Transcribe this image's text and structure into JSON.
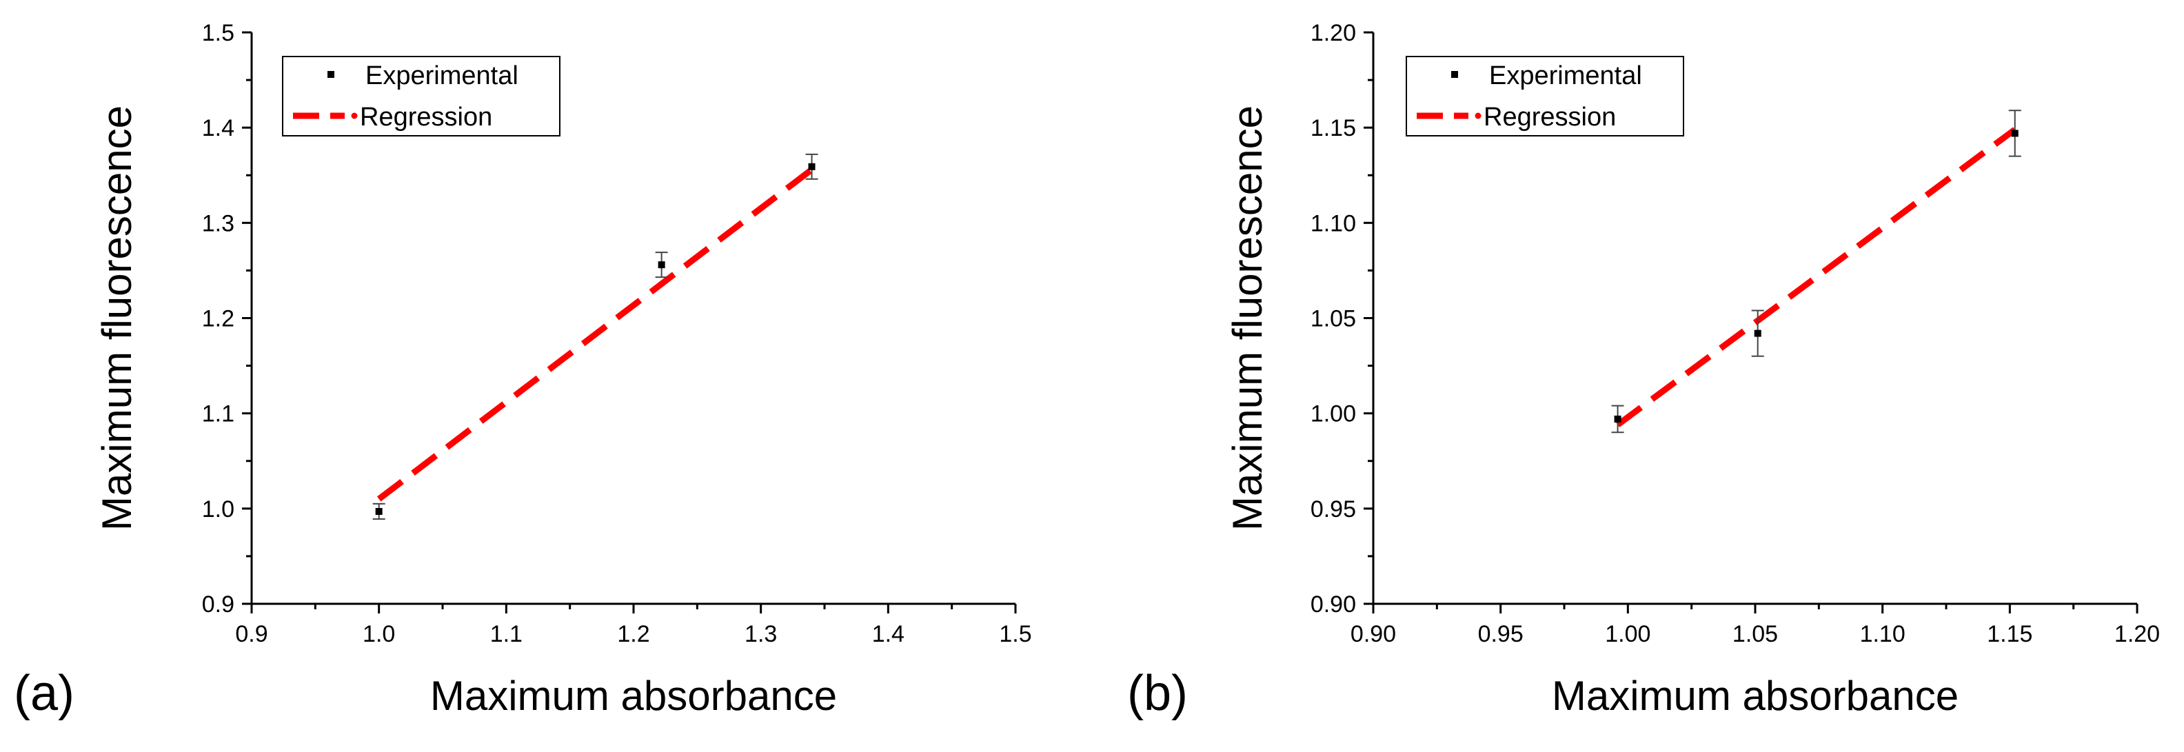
{
  "colors": {
    "regression": "#ff0000",
    "points": "#000000",
    "axis": "#000000",
    "error_bar": "#444444",
    "background": "#ffffff"
  },
  "chart_data": [
    {
      "panel_label": "(a)",
      "type": "scatter",
      "xlabel": "Maximum absorbance",
      "ylabel": "Maximum fluorescence",
      "xlim": [
        0.9,
        1.5
      ],
      "ylim": [
        0.9,
        1.5
      ],
      "xticks": [
        0.9,
        1.0,
        1.1,
        1.2,
        1.3,
        1.4,
        1.5
      ],
      "yticks": [
        0.9,
        1.0,
        1.1,
        1.2,
        1.3,
        1.4,
        1.5
      ],
      "xtick_labels": [
        "0.9",
        "1.0",
        "1.1",
        "1.2",
        "1.3",
        "1.4",
        "1.5"
      ],
      "ytick_labels": [
        "0.9",
        "1.0",
        "1.1",
        "1.2",
        "1.3",
        "1.4",
        "1.5"
      ],
      "legend": {
        "placement": "top-left",
        "entries": [
          "Experimental",
          "Regression"
        ]
      },
      "series": [
        {
          "name": "Experimental",
          "kind": "points",
          "x": [
            1.0,
            1.222,
            1.34
          ],
          "y": [
            0.997,
            1.256,
            1.359
          ],
          "error": [
            0.008,
            0.013,
            0.013
          ]
        },
        {
          "name": "Regression",
          "kind": "line",
          "x": [
            1.0,
            1.34
          ],
          "y": [
            1.01,
            1.356
          ]
        }
      ]
    },
    {
      "panel_label": "(b)",
      "type": "scatter",
      "xlabel": "Maximum absorbance",
      "ylabel": "Maximum fluorescence",
      "xlim": [
        0.9,
        1.2
      ],
      "ylim": [
        0.9,
        1.2
      ],
      "xticks": [
        0.9,
        0.95,
        1.0,
        1.05,
        1.1,
        1.15,
        1.2
      ],
      "yticks": [
        0.9,
        0.95,
        1.0,
        1.05,
        1.1,
        1.15,
        1.2
      ],
      "xtick_labels": [
        "0.90",
        "0.95",
        "1.00",
        "1.05",
        "1.10",
        "1.15",
        "1.20"
      ],
      "ytick_labels": [
        "0.90",
        "0.95",
        "1.00",
        "1.05",
        "1.10",
        "1.15",
        "1.20"
      ],
      "legend": {
        "placement": "top-left",
        "entries": [
          "Experimental",
          "Regression"
        ]
      },
      "series": [
        {
          "name": "Experimental",
          "kind": "points",
          "x": [
            0.996,
            1.051,
            1.152
          ],
          "y": [
            0.997,
            1.042,
            1.147
          ],
          "error": [
            0.007,
            0.012,
            0.012
          ]
        },
        {
          "name": "Regression",
          "kind": "line",
          "x": [
            0.996,
            1.152
          ],
          "y": [
            0.994,
            1.149
          ]
        }
      ]
    }
  ]
}
